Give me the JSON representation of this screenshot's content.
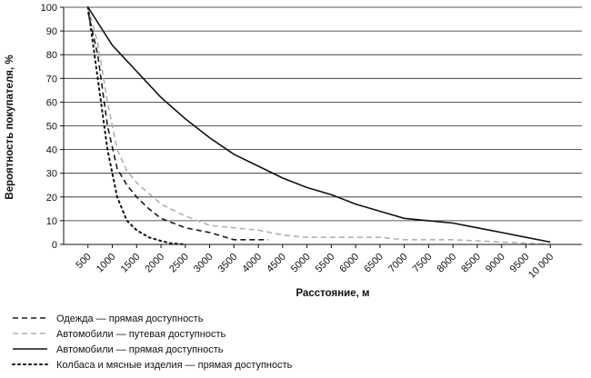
{
  "chart_data": {
    "type": "line",
    "xlabel": "Расстояние, м",
    "ylabel": "Вероятность покупателя, %",
    "ylim": [
      0,
      100
    ],
    "yticks": [
      0,
      10,
      20,
      30,
      40,
      50,
      60,
      70,
      80,
      90,
      100
    ],
    "x_tick_labels": [
      "500",
      "1000",
      "1500",
      "2000",
      "2500",
      "3000",
      "3500",
      "4000",
      "4500",
      "5000",
      "5500",
      "6000",
      "6500",
      "7000",
      "7500",
      "8000",
      "8500",
      "9000",
      "9500",
      "10 000"
    ],
    "grid": "horizontal",
    "legend_position": "bottom-left",
    "series": [
      {
        "name": "Одежда — прямая доступность",
        "style": "dashed",
        "color": "#1a1a1a",
        "x": [
          500,
          700,
          900,
          1100,
          1300,
          1500,
          1750,
          2000,
          2500,
          3000,
          3500,
          4000,
          4200
        ],
        "y": [
          98,
          80,
          50,
          32,
          25,
          20,
          15,
          11,
          7,
          5,
          2,
          2,
          2
        ]
      },
      {
        "name": "Автомобили — путевая доступность",
        "style": "dashed",
        "color": "#b0b0b0",
        "x": [
          500,
          700,
          900,
          1100,
          1300,
          1500,
          2000,
          2500,
          3000,
          3500,
          4000,
          4500,
          5000,
          5500,
          6000,
          6500,
          7000,
          7500,
          8000,
          8500,
          9000,
          9500,
          10000
        ],
        "y": [
          100,
          85,
          60,
          40,
          31,
          26,
          17,
          12,
          8,
          7,
          6,
          4,
          3,
          3,
          3,
          3,
          2,
          2,
          2,
          1.5,
          1,
          0.5,
          0
        ]
      },
      {
        "name": "Автомобили — прямая доступность",
        "style": "solid",
        "color": "#111111",
        "x": [
          500,
          1000,
          1500,
          2000,
          2500,
          3000,
          3500,
          4000,
          4500,
          5000,
          5500,
          6000,
          6500,
          7000,
          7500,
          8000,
          8500,
          9000,
          9500,
          10000
        ],
        "y": [
          100,
          84,
          73,
          62,
          53,
          45,
          38,
          33,
          28,
          24,
          21,
          17,
          14,
          11,
          10,
          9,
          7,
          5,
          3,
          1
        ]
      },
      {
        "name": "Колбаса и мясные изделия — прямая доступность",
        "style": "dotted",
        "color": "#111111",
        "x": [
          500,
          700,
          900,
          1100,
          1300,
          1500,
          1750,
          2000,
          2200,
          2500
        ],
        "y": [
          100,
          70,
          40,
          20,
          10,
          6,
          3,
          1.5,
          0.5,
          0
        ]
      }
    ]
  }
}
